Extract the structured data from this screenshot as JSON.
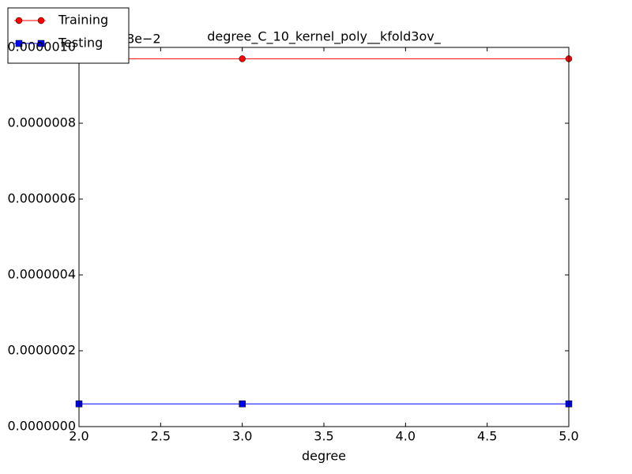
{
  "chart_data": {
    "type": "line",
    "title": "degree_C_10_kernel_poly__kfold3ov_",
    "x_label": "degree",
    "y_offset_text": "8e−2",
    "x": [
      2,
      3,
      5
    ],
    "series": [
      {
        "name": "Training",
        "color": "#ff0000",
        "marker": "circle",
        "values": [
          9.7e-07,
          9.7e-07,
          9.7e-07
        ]
      },
      {
        "name": "Testing",
        "color": "#0000ff",
        "marker": "square",
        "values": [
          6e-08,
          6e-08,
          6e-08
        ]
      }
    ],
    "xlim": [
      2,
      5
    ],
    "xticks": [
      {
        "value": 2,
        "label": "2.0"
      },
      2.5,
      {
        "value": 3,
        "label": "3.0"
      },
      3.5,
      {
        "value": 4,
        "label": "4.0"
      },
      4.5,
      {
        "value": 5,
        "label": "5.0"
      }
    ],
    "ylim": [
      0,
      1e-06
    ],
    "yticks": [
      {
        "value": 0,
        "label": "0.0000000"
      },
      {
        "value": 2e-07,
        "label": "0.0000002"
      },
      {
        "value": 4e-07,
        "label": "0.0000004"
      },
      {
        "value": 6e-07,
        "label": "0.0000006"
      },
      {
        "value": 8e-07,
        "label": "0.0000008"
      },
      {
        "value": 1e-06,
        "label": "0.0000010"
      }
    ],
    "grid": false,
    "legend": "upper-left-outside"
  }
}
